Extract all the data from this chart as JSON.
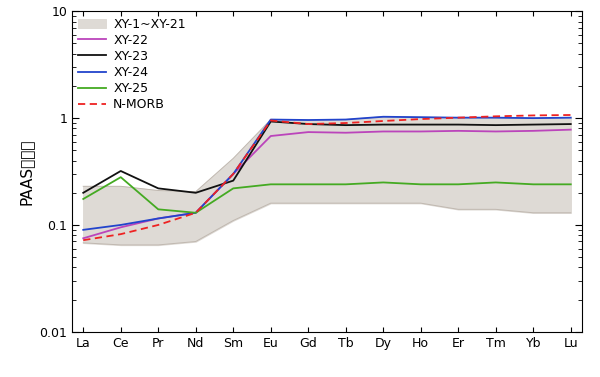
{
  "elements": [
    "La",
    "Ce",
    "Pr",
    "Nd",
    "Sm",
    "Eu",
    "Gd",
    "Tb",
    "Dy",
    "Ho",
    "Er",
    "Tm",
    "Yb",
    "Lu"
  ],
  "xy22": [
    0.075,
    0.095,
    0.115,
    0.13,
    0.3,
    0.68,
    0.74,
    0.73,
    0.75,
    0.75,
    0.76,
    0.75,
    0.76,
    0.78
  ],
  "xy23": [
    0.2,
    0.32,
    0.22,
    0.2,
    0.26,
    0.93,
    0.88,
    0.86,
    0.87,
    0.87,
    0.87,
    0.86,
    0.87,
    0.88
  ],
  "xy24": [
    0.09,
    0.1,
    0.115,
    0.13,
    0.3,
    0.97,
    0.96,
    0.97,
    1.03,
    1.02,
    1.01,
    1.01,
    1.0,
    1.01
  ],
  "xy25": [
    0.175,
    0.28,
    0.14,
    0.13,
    0.22,
    0.24,
    0.24,
    0.24,
    0.25,
    0.24,
    0.24,
    0.25,
    0.24,
    0.24
  ],
  "nmorb": [
    0.072,
    0.082,
    0.1,
    0.13,
    0.3,
    0.95,
    0.88,
    0.9,
    0.94,
    0.98,
    1.01,
    1.04,
    1.06,
    1.07
  ],
  "band_upper": [
    0.23,
    0.23,
    0.21,
    0.205,
    0.42,
    0.97,
    0.96,
    0.97,
    1.03,
    1.02,
    1.01,
    1.01,
    1.0,
    1.01
  ],
  "band_lower": [
    0.068,
    0.065,
    0.065,
    0.07,
    0.11,
    0.16,
    0.16,
    0.16,
    0.16,
    0.16,
    0.14,
    0.14,
    0.13,
    0.13
  ],
  "band_color": "#dedad5",
  "band_edge_color": "#c0b8b0",
  "xy22_color": "#bb44bb",
  "xy23_color": "#111111",
  "xy24_color": "#2244cc",
  "xy25_color": "#44aa22",
  "nmorb_color": "#ee2222",
  "ylabel": "PAAS标准化",
  "ylim_low": 0.01,
  "ylim_high": 10,
  "bg_color": "#ffffff",
  "legend_xy1_label": "XY-1~XY-21",
  "legend_xy22_label": "XY-22",
  "legend_xy23_label": "XY-23",
  "legend_xy24_label": "XY-24",
  "legend_xy25_label": "XY-25",
  "legend_nmorb_label": "N-MORB",
  "tick_fontsize": 9,
  "legend_fontsize": 9,
  "ylabel_fontsize": 11,
  "linewidth": 1.3
}
